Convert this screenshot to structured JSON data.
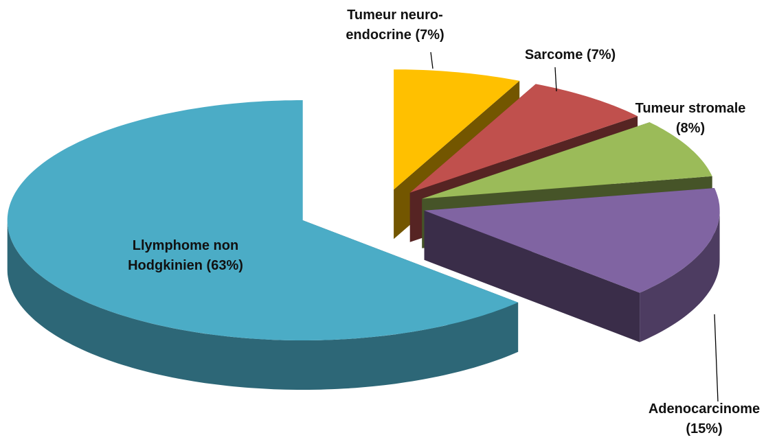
{
  "chart_data": {
    "type": "pie",
    "categories": [
      "Tumeur neuro-endocrine",
      "Sarcome",
      "Tumeur stromale",
      "Adenocarcinome",
      "Llymphome non Hodgkinien"
    ],
    "values": [
      7,
      7,
      8,
      15,
      63
    ],
    "value_labels": [
      "(7%)",
      "(7%)",
      "(8%)",
      "(15%)",
      "(63%)"
    ],
    "colors": [
      "#FFC000",
      "#C0504D",
      "#9BBB59",
      "#8064A2",
      "#4BACC6"
    ]
  }
}
